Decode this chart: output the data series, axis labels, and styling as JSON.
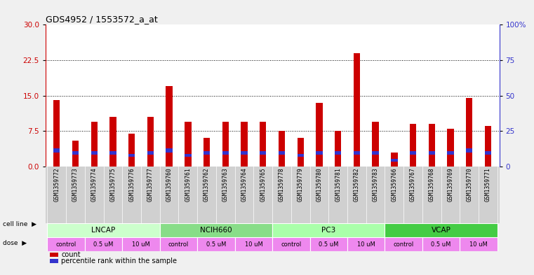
{
  "title": "GDS4952 / 1553572_a_at",
  "samples": [
    "GSM1359772",
    "GSM1359773",
    "GSM1359774",
    "GSM1359775",
    "GSM1359776",
    "GSM1359777",
    "GSM1359760",
    "GSM1359761",
    "GSM1359762",
    "GSM1359763",
    "GSM1359764",
    "GSM1359765",
    "GSM1359778",
    "GSM1359779",
    "GSM1359780",
    "GSM1359781",
    "GSM1359782",
    "GSM1359783",
    "GSM1359766",
    "GSM1359767",
    "GSM1359768",
    "GSM1359769",
    "GSM1359770",
    "GSM1359771"
  ],
  "count_values": [
    14.0,
    5.5,
    9.5,
    10.5,
    7.0,
    10.5,
    17.0,
    9.5,
    6.0,
    9.5,
    9.5,
    9.5,
    7.5,
    6.0,
    13.5,
    7.5,
    24.0,
    9.5,
    3.0,
    9.0,
    9.0,
    8.0,
    14.5,
    8.5
  ],
  "percentile_bottom": [
    3.0,
    2.5,
    2.5,
    2.5,
    2.0,
    2.5,
    3.0,
    2.0,
    2.5,
    2.5,
    2.5,
    2.5,
    2.5,
    2.0,
    2.5,
    2.5,
    2.5,
    2.5,
    1.0,
    2.5,
    2.5,
    2.5,
    3.0,
    2.5
  ],
  "percentile_height": [
    0.8,
    0.7,
    0.7,
    0.7,
    0.7,
    0.7,
    0.8,
    0.7,
    0.7,
    0.7,
    0.7,
    0.7,
    0.7,
    0.7,
    0.7,
    0.7,
    0.7,
    0.7,
    0.6,
    0.7,
    0.7,
    0.7,
    0.8,
    0.7
  ],
  "bar_color": "#cc0000",
  "percentile_color": "#3333cc",
  "cell_lines": [
    {
      "name": "LNCAP",
      "start": 0,
      "end": 6,
      "color": "#ccffcc"
    },
    {
      "name": "NCIH660",
      "start": 6,
      "end": 12,
      "color": "#88dd88"
    },
    {
      "name": "PC3",
      "start": 12,
      "end": 18,
      "color": "#aaffaa"
    },
    {
      "name": "VCAP",
      "start": 18,
      "end": 24,
      "color": "#44cc44"
    }
  ],
  "dose_pattern": [
    "control",
    "0.5 uM",
    "10 uM"
  ],
  "dose_colors_map": {
    "control": "#ee88ee",
    "0.5 uM": "#ee88ee",
    "10 uM": "#ee88ee"
  },
  "ylim_left": [
    0,
    30
  ],
  "ylim_right": [
    0,
    100
  ],
  "yticks_left": [
    0,
    7.5,
    15,
    22.5,
    30
  ],
  "yticks_right": [
    0,
    25,
    50,
    75,
    100
  ],
  "bg_plot": "#ffffff",
  "bg_xtick": "#d0d0d0",
  "bg_figure": "#f0f0f0"
}
